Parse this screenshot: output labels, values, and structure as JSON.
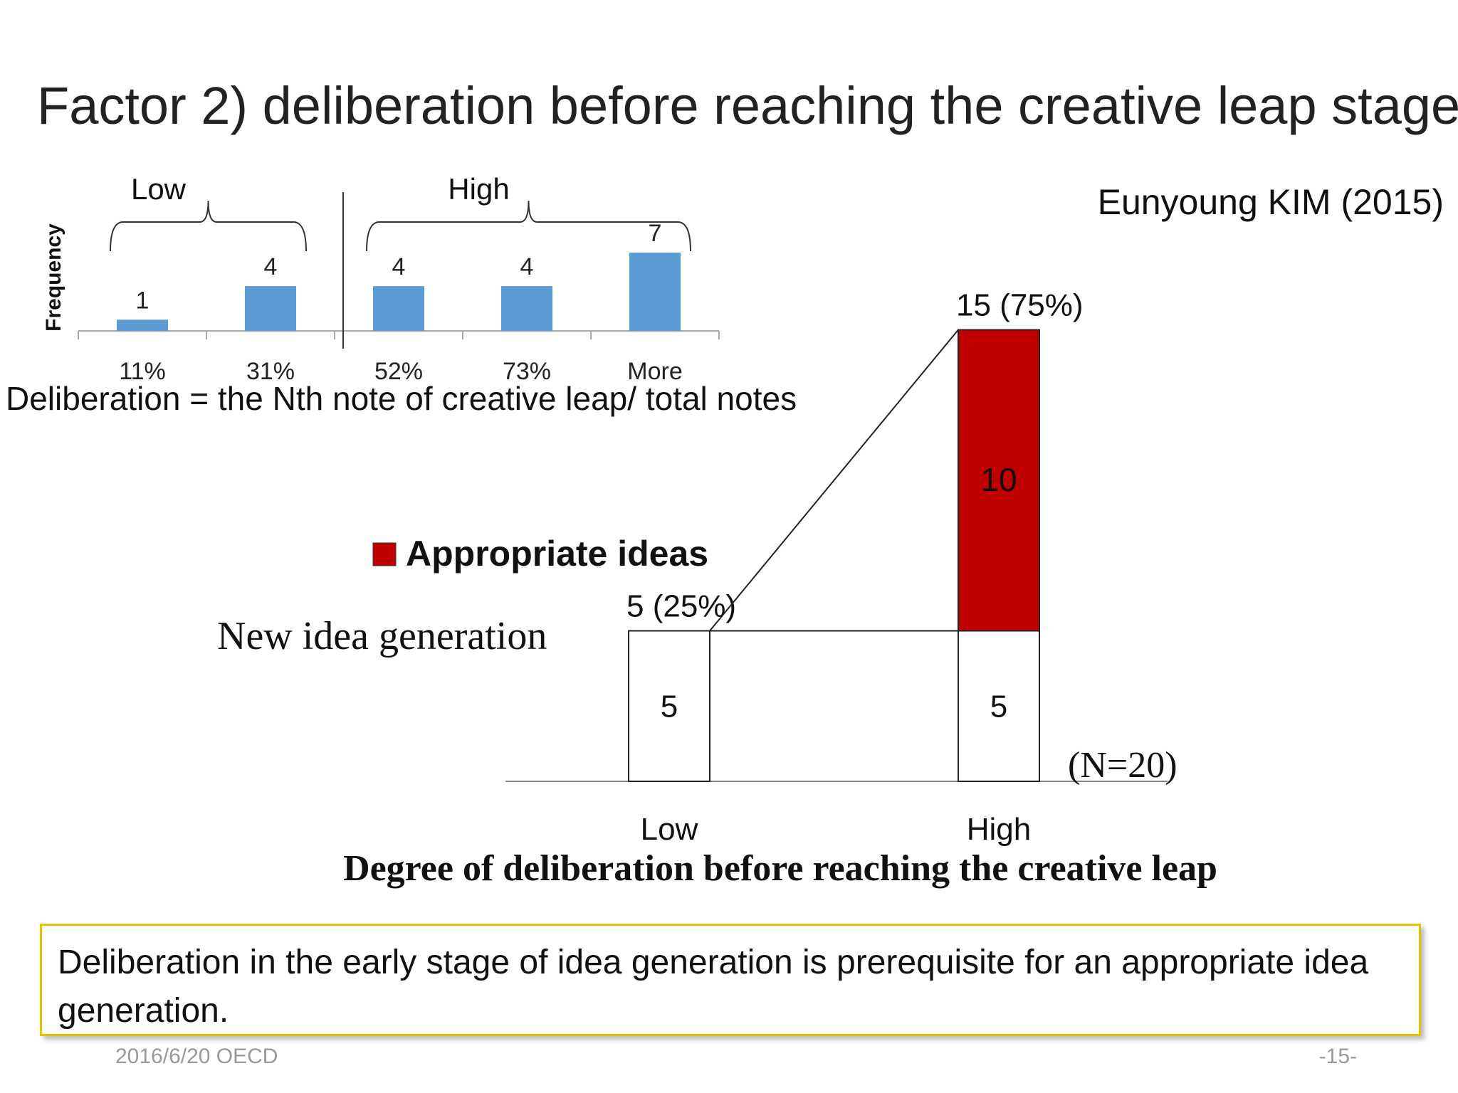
{
  "slide": {
    "title": "Factor 2) deliberation before reaching the creative leap stage",
    "author": "Eunyoung KIM (2015)",
    "conclusion": "Deliberation in the early stage of idea generation is prerequisite for an appropriate idea generation.",
    "footer_date": "2016/6/20 OECD",
    "footer_page": "-15-"
  },
  "colors": {
    "histogram_bar": "#5b9bd5",
    "appropriate": "#c00000",
    "conclusion_border": "#e6c200"
  },
  "chart_data": [
    {
      "type": "bar",
      "categories": [
        "11%",
        "31%",
        "52%",
        "73%",
        "More"
      ],
      "values": [
        1,
        4,
        4,
        4,
        7
      ],
      "ylabel": "Frequency",
      "groups": [
        {
          "label": "Low",
          "categories": [
            "11%",
            "31%"
          ]
        },
        {
          "label": "High",
          "categories": [
            "52%",
            "73%",
            "More"
          ]
        }
      ],
      "annotation": "Deliberation = the Nth note of creative leap/ total notes",
      "ylim": [
        0,
        7
      ],
      "grid": false
    },
    {
      "type": "bar",
      "stacked": true,
      "categories": [
        "Low",
        "High"
      ],
      "series": [
        {
          "name": "New idea generation",
          "values": [
            5,
            5
          ],
          "color": "#ffffff"
        },
        {
          "name": "Appropriate ideas",
          "values": [
            0,
            10
          ],
          "color": "#c00000"
        }
      ],
      "totals": [
        "5 (25%)",
        "15 (75%)"
      ],
      "xlabel": "Degree of deliberation before reaching the creative leap",
      "note": "(N=20)",
      "ylim": [
        0,
        15
      ],
      "grid": false,
      "legend_position": "top-left"
    }
  ]
}
